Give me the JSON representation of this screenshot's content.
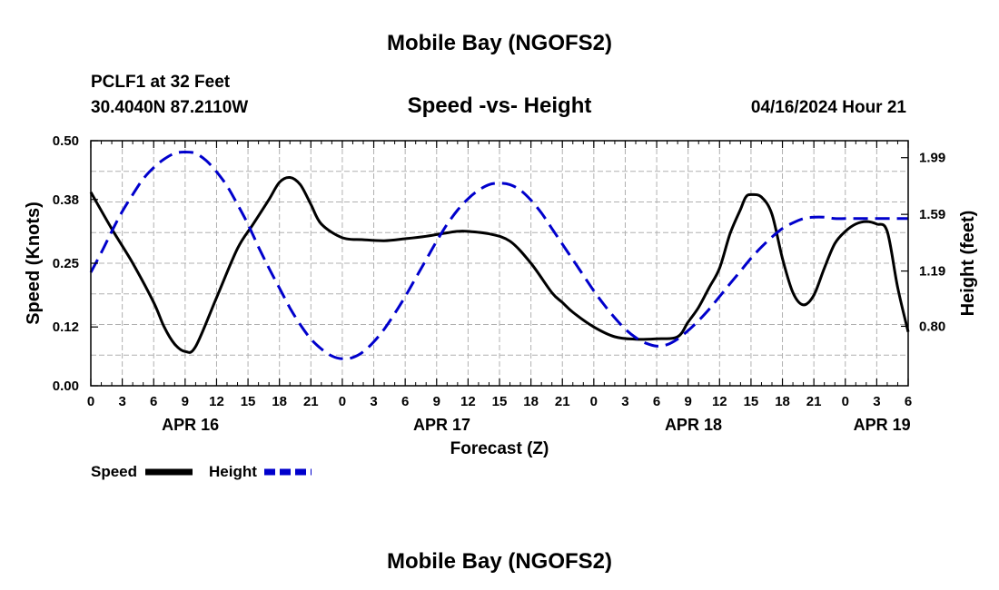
{
  "page": {
    "title_top": "Mobile Bay (NGOFS2)",
    "title_bottom": "Mobile Bay (NGOFS2)",
    "station_line": "PCLF1 at 32 Feet",
    "coords_line": "30.4040N  87.2110W",
    "chart_title": "Speed -vs- Height",
    "datetime": "04/16/2024 Hour 21"
  },
  "chart_data": {
    "type": "line",
    "title": "Speed -vs- Height",
    "xlabel": "Forecast (Z)",
    "ylabel_left": "Speed (Knots)",
    "ylabel_right": "Height (feet)",
    "x_hours_range": [
      0,
      78
    ],
    "x_tick_labels": [
      "0",
      "3",
      "6",
      "9",
      "12",
      "15",
      "18",
      "21",
      "0",
      "3",
      "6",
      "9",
      "12",
      "15",
      "18",
      "21",
      "0",
      "3",
      "6",
      "9",
      "12",
      "15",
      "18",
      "21",
      "0",
      "3",
      "6"
    ],
    "date_labels": [
      {
        "label": "APR 16",
        "hour": 9.5
      },
      {
        "label": "APR 17",
        "hour": 33.5
      },
      {
        "label": "APR 18",
        "hour": 57.5
      },
      {
        "label": "APR 19",
        "hour": 75.5
      }
    ],
    "ylim_left": [
      0,
      0.5
    ],
    "yticks_left": [
      "0.00",
      "0.12",
      "0.25",
      "0.38",
      "0.50"
    ],
    "ylim_right": [
      0.38,
      2.11
    ],
    "yticks_right": [
      "0.80",
      "1.19",
      "1.59",
      "1.99"
    ],
    "grid": true,
    "legend_position": "bottom-left",
    "series": [
      {
        "name": "Speed",
        "axis": "left",
        "color": "#000000",
        "dash": "solid",
        "x": [
          0,
          2,
          4,
          6,
          7,
          8,
          9,
          10,
          12,
          14,
          15.5,
          17,
          18,
          19,
          20,
          21,
          22,
          24,
          26,
          28,
          30,
          32,
          34,
          35,
          36,
          38,
          40,
          42,
          44,
          45,
          46,
          48,
          50,
          52,
          54,
          56,
          57,
          58,
          59,
          60,
          61,
          62,
          62.5,
          63,
          64,
          65,
          66,
          67,
          68,
          69,
          70,
          71,
          72,
          73,
          74,
          75,
          76,
          77,
          78
        ],
        "y": [
          0.395,
          0.32,
          0.25,
          0.17,
          0.12,
          0.085,
          0.07,
          0.08,
          0.18,
          0.28,
          0.33,
          0.38,
          0.415,
          0.425,
          0.41,
          0.37,
          0.33,
          0.302,
          0.298,
          0.296,
          0.3,
          0.305,
          0.312,
          0.315,
          0.315,
          0.31,
          0.295,
          0.25,
          0.19,
          0.17,
          0.15,
          0.12,
          0.1,
          0.095,
          0.096,
          0.1,
          0.13,
          0.16,
          0.2,
          0.24,
          0.31,
          0.36,
          0.385,
          0.39,
          0.385,
          0.35,
          0.26,
          0.19,
          0.165,
          0.185,
          0.24,
          0.29,
          0.315,
          0.33,
          0.335,
          0.33,
          0.315,
          0.2,
          0.11
        ]
      },
      {
        "name": "Height",
        "axis": "right",
        "color": "#0000cc",
        "dash": "dashed",
        "x": [
          0,
          1,
          2,
          3,
          4,
          5,
          6,
          7,
          8,
          9,
          10,
          11,
          12,
          13,
          14,
          15,
          16,
          17,
          18,
          19,
          20,
          21,
          22,
          23,
          24,
          25,
          26,
          27,
          28,
          29,
          30,
          31,
          32,
          33,
          34,
          35,
          36,
          37,
          38,
          39,
          40,
          41,
          42,
          43,
          44,
          45,
          46,
          47,
          48,
          49,
          50,
          51,
          52,
          53,
          54,
          55,
          56,
          57,
          58,
          59,
          60,
          61,
          62,
          63,
          64,
          65,
          66,
          67,
          68,
          69,
          70,
          71,
          72,
          73,
          74,
          75,
          76,
          77,
          78
        ],
        "y": [
          1.18,
          1.32,
          1.47,
          1.61,
          1.73,
          1.84,
          1.92,
          1.98,
          2.02,
          2.03,
          2.02,
          1.97,
          1.89,
          1.79,
          1.66,
          1.52,
          1.36,
          1.21,
          1.07,
          0.93,
          0.81,
          0.71,
          0.64,
          0.59,
          0.57,
          0.58,
          0.62,
          0.69,
          0.78,
          0.89,
          1.01,
          1.14,
          1.27,
          1.4,
          1.52,
          1.62,
          1.7,
          1.76,
          1.8,
          1.81,
          1.8,
          1.76,
          1.69,
          1.6,
          1.49,
          1.38,
          1.27,
          1.16,
          1.05,
          0.95,
          0.86,
          0.78,
          0.72,
          0.68,
          0.66,
          0.67,
          0.71,
          0.77,
          0.84,
          0.92,
          1.01,
          1.1,
          1.19,
          1.28,
          1.36,
          1.43,
          1.49,
          1.53,
          1.56,
          1.57,
          1.57,
          1.56,
          1.56,
          1.56,
          1.56,
          1.56,
          1.56,
          1.56,
          1.56
        ]
      }
    ],
    "legend": [
      {
        "label": "Speed",
        "color": "#000000",
        "dash": "solid"
      },
      {
        "label": "Height",
        "color": "#0000cc",
        "dash": "dashed"
      }
    ]
  }
}
